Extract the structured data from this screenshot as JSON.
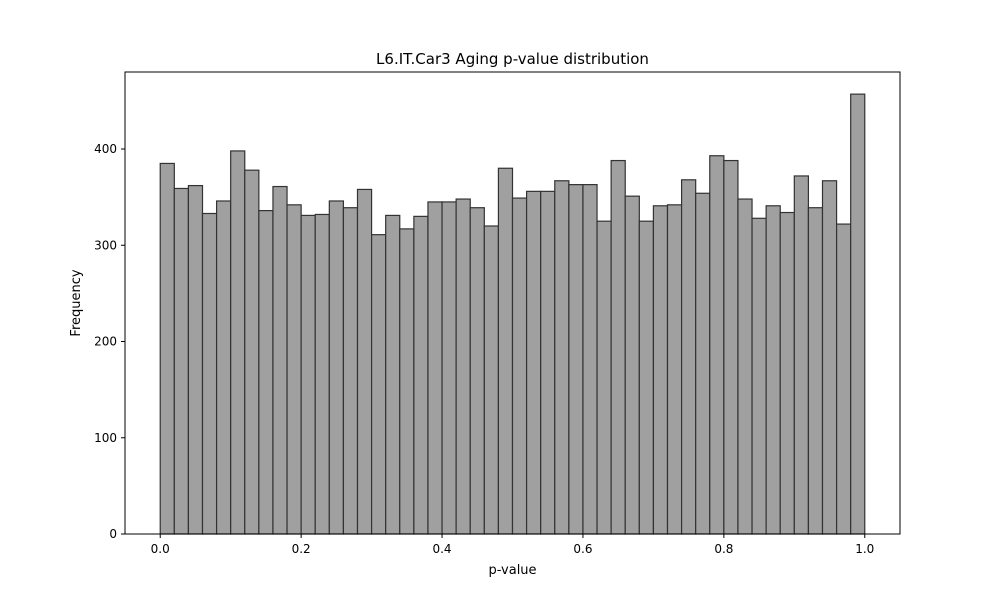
{
  "chart_data": {
    "type": "bar",
    "title": "L6.IT.Car3 Aging p-value distribution",
    "xlabel": "p-value",
    "ylabel": "Frequency",
    "xlim": [
      -0.05,
      1.05
    ],
    "ylim": [
      0,
      480
    ],
    "bin_start": 0.0,
    "bin_end": 1.0,
    "values": [
      385,
      359,
      362,
      333,
      346,
      398,
      378,
      336,
      361,
      342,
      331,
      332,
      346,
      339,
      358,
      311,
      331,
      317,
      330,
      345,
      345,
      348,
      339,
      320,
      380,
      349,
      356,
      356,
      367,
      363,
      363,
      325,
      388,
      351,
      325,
      341,
      342,
      368,
      354,
      393,
      388,
      348,
      328,
      341,
      334,
      372,
      339,
      367,
      322,
      457
    ],
    "xticks": [
      {
        "value": 0.0,
        "label": "0.0"
      },
      {
        "value": 0.2,
        "label": "0.2"
      },
      {
        "value": 0.4,
        "label": "0.4"
      },
      {
        "value": 0.6,
        "label": "0.6"
      },
      {
        "value": 0.8,
        "label": "0.8"
      },
      {
        "value": 1.0,
        "label": "1.0"
      }
    ],
    "yticks": [
      {
        "value": 0,
        "label": "0"
      },
      {
        "value": 100,
        "label": "100"
      },
      {
        "value": 200,
        "label": "200"
      },
      {
        "value": 300,
        "label": "300"
      },
      {
        "value": 400,
        "label": "400"
      }
    ],
    "grid": false,
    "bar_color": "#a0a0a0",
    "edge_color": "#333333"
  }
}
